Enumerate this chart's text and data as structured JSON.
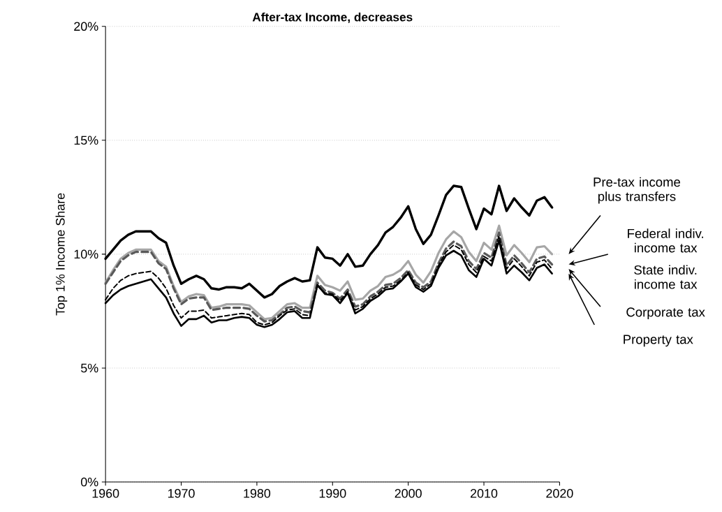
{
  "chart_data": {
    "type": "line",
    "title": "After-tax Income, decreases",
    "ylabel": "Top 1% Income Share",
    "x": [
      1960,
      1961,
      1962,
      1963,
      1964,
      1965,
      1966,
      1967,
      1968,
      1969,
      1970,
      1971,
      1972,
      1973,
      1974,
      1975,
      1976,
      1977,
      1978,
      1979,
      1980,
      1981,
      1982,
      1983,
      1984,
      1985,
      1986,
      1987,
      1988,
      1989,
      1990,
      1991,
      1992,
      1993,
      1994,
      1995,
      1996,
      1997,
      1998,
      1999,
      2000,
      2001,
      2002,
      2003,
      2004,
      2005,
      2006,
      2007,
      2008,
      2009,
      2010,
      2011,
      2012,
      2013,
      2014,
      2015,
      2016,
      2017,
      2018,
      2019
    ],
    "series": [
      {
        "name": "Pre-tax income plus transfers",
        "color": "#000000",
        "line_style": "solid",
        "values": [
          9.8,
          10.2,
          10.6,
          10.85,
          11.0,
          11.0,
          11.0,
          10.7,
          10.5,
          9.5,
          8.7,
          8.9,
          9.05,
          8.9,
          8.5,
          8.45,
          8.55,
          8.55,
          8.5,
          8.7,
          8.4,
          8.1,
          8.25,
          8.6,
          8.8,
          8.95,
          8.8,
          8.85,
          10.3,
          9.85,
          9.8,
          9.5,
          10.0,
          9.45,
          9.5,
          10.0,
          10.4,
          10.95,
          11.2,
          11.6,
          12.1,
          11.1,
          10.45,
          10.85,
          11.7,
          12.6,
          13.0,
          12.95,
          12.0,
          11.1,
          12.0,
          11.75,
          13.0,
          11.9,
          12.45,
          12.05,
          11.7,
          12.35,
          12.5,
          12.05
        ]
      },
      {
        "name": "Federal indiv. income tax",
        "color": "#a6a6a6",
        "line_style": "solid",
        "values": [
          8.75,
          9.3,
          9.8,
          10.05,
          10.2,
          10.2,
          10.2,
          9.7,
          9.45,
          8.6,
          7.9,
          8.15,
          8.25,
          8.2,
          7.65,
          7.7,
          7.8,
          7.8,
          7.8,
          7.75,
          7.45,
          7.15,
          7.2,
          7.5,
          7.8,
          7.85,
          7.65,
          7.65,
          9.05,
          8.65,
          8.55,
          8.4,
          8.8,
          8.0,
          8.05,
          8.4,
          8.6,
          9.0,
          9.1,
          9.3,
          9.7,
          9.1,
          8.75,
          9.25,
          10.05,
          10.65,
          11.0,
          10.75,
          10.1,
          9.7,
          10.5,
          10.2,
          11.25,
          9.95,
          10.4,
          10.05,
          9.65,
          10.3,
          10.35,
          10.0
        ]
      },
      {
        "name": "State indiv. income tax",
        "color": "#595959",
        "line_style": "dashed",
        "values": [
          8.7,
          9.2,
          9.7,
          9.95,
          10.1,
          10.1,
          10.1,
          9.6,
          9.35,
          8.5,
          7.8,
          8.05,
          8.1,
          8.1,
          7.55,
          7.6,
          7.65,
          7.65,
          7.65,
          7.6,
          7.3,
          7.05,
          7.1,
          7.35,
          7.65,
          7.7,
          7.5,
          7.45,
          8.75,
          8.4,
          8.3,
          8.05,
          8.45,
          7.7,
          7.8,
          8.15,
          8.35,
          8.65,
          8.7,
          8.95,
          9.3,
          8.75,
          8.55,
          8.8,
          9.6,
          10.25,
          10.55,
          10.35,
          9.7,
          9.35,
          10.05,
          9.85,
          10.95,
          9.5,
          9.95,
          9.6,
          9.2,
          9.8,
          9.9,
          9.55
        ]
      },
      {
        "name": "Corporate tax",
        "color": "#000000",
        "line_style": "dashed",
        "values": [
          8.0,
          8.5,
          8.85,
          9.05,
          9.15,
          9.2,
          9.25,
          8.95,
          8.5,
          7.75,
          7.2,
          7.5,
          7.5,
          7.55,
          7.2,
          7.25,
          7.3,
          7.35,
          7.4,
          7.35,
          7.0,
          6.9,
          7.0,
          7.3,
          7.55,
          7.6,
          7.35,
          7.3,
          8.6,
          8.3,
          8.25,
          7.95,
          8.35,
          7.55,
          7.7,
          8.05,
          8.25,
          8.55,
          8.6,
          8.85,
          9.2,
          8.65,
          8.45,
          8.7,
          9.5,
          10.1,
          10.4,
          10.2,
          9.55,
          9.2,
          9.9,
          9.7,
          10.8,
          9.35,
          9.8,
          9.45,
          9.05,
          9.65,
          9.75,
          9.35
        ]
      },
      {
        "name": "Property tax",
        "color": "#000000",
        "line_style": "solid",
        "values": [
          7.85,
          8.2,
          8.45,
          8.6,
          8.7,
          8.8,
          8.9,
          8.5,
          8.1,
          7.4,
          6.85,
          7.15,
          7.15,
          7.3,
          7.0,
          7.1,
          7.1,
          7.2,
          7.25,
          7.2,
          6.9,
          6.8,
          6.9,
          7.15,
          7.45,
          7.5,
          7.2,
          7.2,
          8.65,
          8.25,
          8.2,
          7.85,
          8.3,
          7.4,
          7.6,
          7.95,
          8.15,
          8.45,
          8.5,
          8.8,
          9.15,
          8.55,
          8.35,
          8.6,
          9.4,
          9.95,
          10.15,
          9.95,
          9.3,
          9.0,
          9.8,
          9.5,
          10.6,
          9.15,
          9.5,
          9.2,
          8.85,
          9.4,
          9.55,
          9.15
        ]
      }
    ],
    "xlim": [
      1960,
      2020
    ],
    "xticks": [
      1960,
      1970,
      1980,
      1990,
      2000,
      2010,
      2020
    ],
    "ylim": [
      0,
      20
    ],
    "yticks": [
      {
        "value": 0,
        "label": "0%"
      },
      {
        "value": 5,
        "label": "5%"
      },
      {
        "value": 10,
        "label": "10%"
      },
      {
        "value": 15,
        "label": "15%"
      },
      {
        "value": 20,
        "label": "20%"
      }
    ],
    "grid": "y",
    "legend": false,
    "marker": "none"
  }
}
